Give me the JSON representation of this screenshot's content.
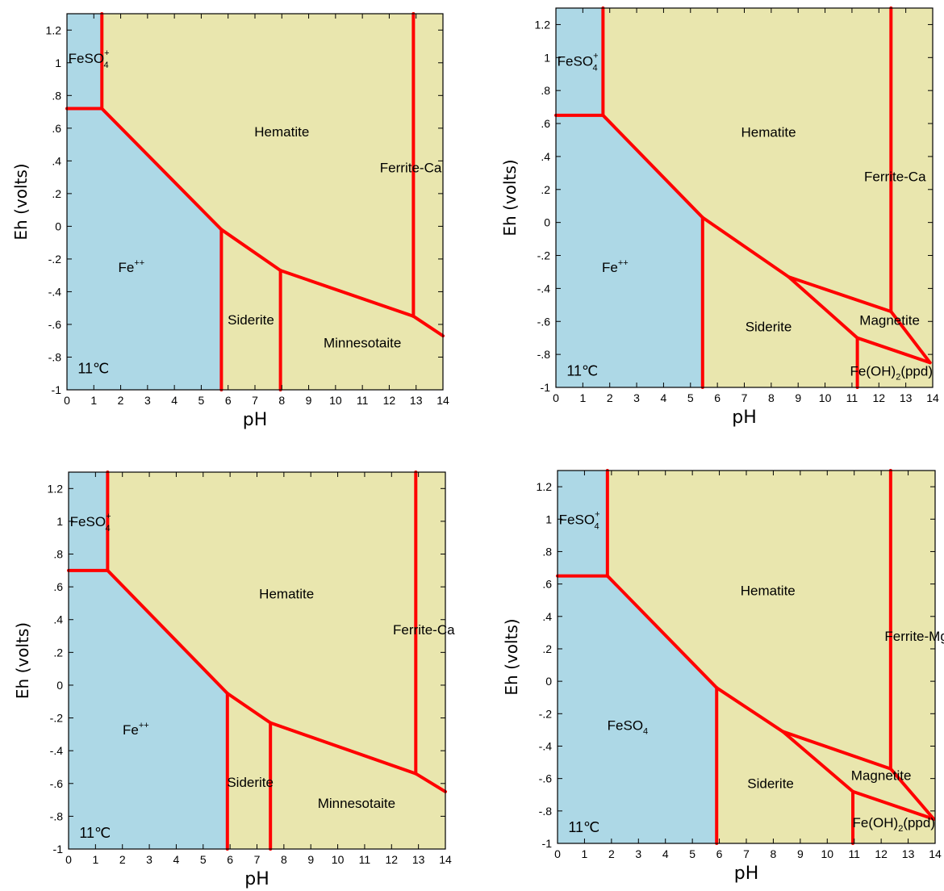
{
  "colors": {
    "aqueous_region": "#add8e6",
    "solid_region": "#e9e6ae",
    "boundary_line": "#ff0000",
    "axis": "#000000"
  },
  "chart_data": [
    {
      "type": "phase-diagram",
      "xlabel": "pH",
      "ylabel": "Eh (volts)",
      "xlim": [
        0,
        14
      ],
      "ylim": [
        -1,
        1.3
      ],
      "xticks": [
        "0",
        "1",
        "2",
        "3",
        "4",
        "5",
        "6",
        "7",
        "8",
        "9",
        "10",
        "11",
        "12",
        "13",
        "14"
      ],
      "yticks": [
        {
          "v": -1,
          "t": "-1"
        },
        {
          "v": -0.8,
          "t": "-.8"
        },
        {
          "v": -0.6,
          "t": "-.6"
        },
        {
          "v": -0.4,
          "t": "-.4"
        },
        {
          "v": -0.2,
          "t": "-.2"
        },
        {
          "v": 0,
          "t": "0"
        },
        {
          "v": 0.2,
          "t": ".2"
        },
        {
          "v": 0.4,
          "t": ".4"
        },
        {
          "v": 0.6,
          "t": ".6"
        },
        {
          "v": 0.8,
          "t": ".8"
        },
        {
          "v": 1,
          "t": "1"
        },
        {
          "v": 1.2,
          "t": "1.2"
        }
      ],
      "temperature": "11℃",
      "aqueous_region": [
        [
          0,
          1.3
        ],
        [
          1.3,
          1.3
        ],
        [
          1.3,
          0.72
        ],
        [
          5.75,
          -0.02
        ],
        [
          5.75,
          -1
        ],
        [
          0,
          -1
        ]
      ],
      "boundaries": [
        [
          [
            0,
            0.72
          ],
          [
            1.3,
            0.72
          ]
        ],
        [
          [
            1.3,
            1.3
          ],
          [
            1.3,
            0.72
          ]
        ],
        [
          [
            1.3,
            0.72
          ],
          [
            5.75,
            -0.02
          ]
        ],
        [
          [
            5.75,
            -0.02
          ],
          [
            5.75,
            -1
          ]
        ],
        [
          [
            5.75,
            -0.02
          ],
          [
            7.95,
            -0.27
          ]
        ],
        [
          [
            7.95,
            -0.27
          ],
          [
            7.95,
            -1
          ]
        ],
        [
          [
            7.95,
            -0.27
          ],
          [
            12.9,
            -0.55
          ]
        ],
        [
          [
            12.9,
            1.3
          ],
          [
            12.9,
            -0.55
          ]
        ],
        [
          [
            12.9,
            -0.55
          ],
          [
            14,
            -0.67
          ]
        ]
      ],
      "labels": [
        {
          "main": "FeSO",
          "sub": "4",
          "sup": "+",
          "x": 0.05,
          "y": 1.0
        },
        {
          "main": "Hematite",
          "x": 8.0,
          "y": 0.55
        },
        {
          "main": "Ferrite-Ca",
          "x": 12.8,
          "y": 0.33
        },
        {
          "main": "Fe",
          "sup": "++",
          "x": 2.4,
          "y": -0.28
        },
        {
          "main": "Siderite",
          "x": 6.85,
          "y": -0.6
        },
        {
          "main": "Minnesotaite",
          "x": 11.0,
          "y": -0.74
        },
        {
          "main": "11℃",
          "x": 0.4,
          "y": -0.9,
          "kind": "temp"
        }
      ]
    },
    {
      "type": "phase-diagram",
      "xlabel": "pH",
      "ylabel": "Eh (volts)",
      "xlim": [
        0,
        14
      ],
      "ylim": [
        -1,
        1.3
      ],
      "xticks": [
        "0",
        "1",
        "2",
        "3",
        "4",
        "5",
        "6",
        "7",
        "8",
        "9",
        "10",
        "11",
        "12",
        "13",
        "14"
      ],
      "yticks": [
        {
          "v": -1,
          "t": "-1"
        },
        {
          "v": -0.8,
          "t": "-.8"
        },
        {
          "v": -0.6,
          "t": "-.6"
        },
        {
          "v": -0.4,
          "t": "-.4"
        },
        {
          "v": -0.2,
          "t": "-.2"
        },
        {
          "v": 0,
          "t": "0"
        },
        {
          "v": 0.2,
          "t": ".2"
        },
        {
          "v": 0.4,
          "t": ".4"
        },
        {
          "v": 0.6,
          "t": ".6"
        },
        {
          "v": 0.8,
          "t": ".8"
        },
        {
          "v": 1,
          "t": "1"
        },
        {
          "v": 1.2,
          "t": "1.2"
        }
      ],
      "temperature": "11℃",
      "aqueous_region": [
        [
          0,
          1.3
        ],
        [
          1.75,
          1.3
        ],
        [
          1.75,
          0.65
        ],
        [
          5.45,
          0.03
        ],
        [
          5.45,
          -1
        ],
        [
          0,
          -1
        ]
      ],
      "boundaries": [
        [
          [
            0,
            0.65
          ],
          [
            1.75,
            0.65
          ]
        ],
        [
          [
            1.75,
            1.3
          ],
          [
            1.75,
            0.65
          ]
        ],
        [
          [
            1.75,
            0.65
          ],
          [
            5.45,
            0.03
          ]
        ],
        [
          [
            5.45,
            0.03
          ],
          [
            5.45,
            -1
          ]
        ],
        [
          [
            5.45,
            0.03
          ],
          [
            8.65,
            -0.33
          ]
        ],
        [
          [
            8.65,
            -0.33
          ],
          [
            12.45,
            -0.54
          ]
        ],
        [
          [
            12.45,
            1.3
          ],
          [
            12.45,
            -0.54
          ]
        ],
        [
          [
            8.65,
            -0.33
          ],
          [
            11.2,
            -0.7
          ]
        ],
        [
          [
            11.2,
            -0.7
          ],
          [
            11.2,
            -1
          ]
        ],
        [
          [
            11.2,
            -0.7
          ],
          [
            13.9,
            -0.85
          ]
        ],
        [
          [
            12.45,
            -0.54
          ],
          [
            13.9,
            -0.85
          ]
        ]
      ],
      "labels": [
        {
          "main": "FeSO",
          "sub": "4",
          "sup": "+",
          "x": 0.05,
          "y": 0.95
        },
        {
          "main": "Hematite",
          "x": 7.9,
          "y": 0.52
        },
        {
          "main": "Ferrite-Ca",
          "x": 12.6,
          "y": 0.25
        },
        {
          "main": "Fe",
          "sup": "++",
          "x": 2.2,
          "y": -0.3
        },
        {
          "main": "Siderite",
          "x": 7.9,
          "y": -0.66
        },
        {
          "main": "Magnetite",
          "x": 12.4,
          "y": -0.62
        },
        {
          "main": "Fe(OH)",
          "sub": "2",
          "after": "(ppd)",
          "x": 14.0,
          "y": -0.93,
          "anchor": "end"
        },
        {
          "main": "11℃",
          "x": 0.4,
          "y": -0.93,
          "kind": "temp"
        }
      ]
    },
    {
      "type": "phase-diagram",
      "xlabel": "pH",
      "ylabel": "Eh (volts)",
      "xlim": [
        0,
        14
      ],
      "ylim": [
        -1,
        1.3
      ],
      "xticks": [
        "0",
        "1",
        "2",
        "3",
        "4",
        "5",
        "6",
        "7",
        "8",
        "9",
        "10",
        "11",
        "12",
        "13",
        "14"
      ],
      "yticks": [
        {
          "v": -1,
          "t": "-1"
        },
        {
          "v": -0.8,
          "t": "-.8"
        },
        {
          "v": -0.6,
          "t": "-.6"
        },
        {
          "v": -0.4,
          "t": "-.4"
        },
        {
          "v": -0.2,
          "t": "-.2"
        },
        {
          "v": 0,
          "t": "0"
        },
        {
          "v": 0.2,
          "t": ".2"
        },
        {
          "v": 0.4,
          "t": ".4"
        },
        {
          "v": 0.6,
          "t": ".6"
        },
        {
          "v": 0.8,
          "t": ".8"
        },
        {
          "v": 1,
          "t": "1"
        },
        {
          "v": 1.2,
          "t": "1.2"
        }
      ],
      "temperature": "11℃",
      "aqueous_region": [
        [
          0,
          1.3
        ],
        [
          1.45,
          1.3
        ],
        [
          1.45,
          0.7
        ],
        [
          5.9,
          -0.05
        ],
        [
          5.9,
          -1
        ],
        [
          0,
          -1
        ]
      ],
      "boundaries": [
        [
          [
            0,
            0.7
          ],
          [
            1.45,
            0.7
          ]
        ],
        [
          [
            1.45,
            1.3
          ],
          [
            1.45,
            0.7
          ]
        ],
        [
          [
            1.45,
            0.7
          ],
          [
            5.9,
            -0.05
          ]
        ],
        [
          [
            5.9,
            -0.05
          ],
          [
            5.9,
            -1
          ]
        ],
        [
          [
            5.9,
            -0.05
          ],
          [
            7.5,
            -0.23
          ]
        ],
        [
          [
            7.5,
            -0.23
          ],
          [
            7.5,
            -1
          ]
        ],
        [
          [
            7.5,
            -0.23
          ],
          [
            12.9,
            -0.54
          ]
        ],
        [
          [
            12.9,
            1.3
          ],
          [
            12.9,
            -0.54
          ]
        ],
        [
          [
            12.9,
            -0.54
          ],
          [
            14,
            -0.65
          ]
        ]
      ],
      "labels": [
        {
          "main": "FeSO",
          "sub": "4",
          "sup": "+",
          "x": 0.05,
          "y": 0.97
        },
        {
          "main": "Hematite",
          "x": 8.1,
          "y": 0.53
        },
        {
          "main": "Ferrite-Ca",
          "x": 13.2,
          "y": 0.31
        },
        {
          "main": "Fe",
          "sup": "++",
          "x": 2.5,
          "y": -0.3
        },
        {
          "main": "Siderite",
          "x": 6.75,
          "y": -0.62
        },
        {
          "main": "Minnesotaite",
          "x": 10.7,
          "y": -0.75
        },
        {
          "main": "11℃",
          "x": 0.4,
          "y": -0.93,
          "kind": "temp"
        }
      ]
    },
    {
      "type": "phase-diagram",
      "xlabel": "pH",
      "ylabel": "Eh (volts)",
      "xlim": [
        0,
        14
      ],
      "ylim": [
        -1,
        1.3
      ],
      "xticks": [
        "0",
        "1",
        "2",
        "3",
        "4",
        "5",
        "6",
        "7",
        "8",
        "9",
        "10",
        "11",
        "12",
        "13",
        "14"
      ],
      "yticks": [
        {
          "v": -1,
          "t": "-1"
        },
        {
          "v": -0.8,
          "t": "-.8"
        },
        {
          "v": -0.6,
          "t": "-.6"
        },
        {
          "v": -0.4,
          "t": "-.4"
        },
        {
          "v": -0.2,
          "t": "-.2"
        },
        {
          "v": 0,
          "t": "0"
        },
        {
          "v": 0.2,
          "t": ".2"
        },
        {
          "v": 0.4,
          "t": ".4"
        },
        {
          "v": 0.6,
          "t": ".6"
        },
        {
          "v": 0.8,
          "t": ".8"
        },
        {
          "v": 1,
          "t": "1"
        },
        {
          "v": 1.2,
          "t": "1.2"
        }
      ],
      "temperature": "11℃",
      "aqueous_region": [
        [
          0,
          1.3
        ],
        [
          1.85,
          1.3
        ],
        [
          1.85,
          0.65
        ],
        [
          5.9,
          -0.04
        ],
        [
          5.9,
          -1
        ],
        [
          0,
          -1
        ]
      ],
      "boundaries": [
        [
          [
            0,
            0.65
          ],
          [
            1.85,
            0.65
          ]
        ],
        [
          [
            1.85,
            1.3
          ],
          [
            1.85,
            0.65
          ]
        ],
        [
          [
            1.85,
            0.65
          ],
          [
            5.9,
            -0.04
          ]
        ],
        [
          [
            5.9,
            -0.04
          ],
          [
            5.9,
            -1
          ]
        ],
        [
          [
            5.9,
            -0.04
          ],
          [
            8.35,
            -0.31
          ]
        ],
        [
          [
            8.35,
            -0.31
          ],
          [
            12.35,
            -0.54
          ]
        ],
        [
          [
            12.35,
            1.3
          ],
          [
            12.35,
            -0.54
          ]
        ],
        [
          [
            8.35,
            -0.31
          ],
          [
            10.95,
            -0.68
          ]
        ],
        [
          [
            10.95,
            -0.68
          ],
          [
            10.95,
            -1
          ]
        ],
        [
          [
            10.95,
            -0.68
          ],
          [
            13.95,
            -0.85
          ]
        ],
        [
          [
            12.35,
            -0.54
          ],
          [
            13.95,
            -0.85
          ]
        ]
      ],
      "labels": [
        {
          "main": "FeSO",
          "sub": "4",
          "sup": "+",
          "x": 0.05,
          "y": 0.97
        },
        {
          "main": "Hematite",
          "x": 7.8,
          "y": 0.53
        },
        {
          "main": "Ferrite-Mg",
          "x": 13.3,
          "y": 0.25
        },
        {
          "main": "FeSO",
          "sub": "4",
          "x": 2.6,
          "y": -0.3
        },
        {
          "main": "Siderite",
          "x": 7.9,
          "y": -0.66
        },
        {
          "main": "Magnetite",
          "x": 12.0,
          "y": -0.61
        },
        {
          "main": "Fe(OH)",
          "sub": "2",
          "after": "(ppd)",
          "x": 14.0,
          "y": -0.9,
          "anchor": "end"
        },
        {
          "main": "11℃",
          "x": 0.4,
          "y": -0.93,
          "kind": "temp"
        }
      ]
    }
  ]
}
